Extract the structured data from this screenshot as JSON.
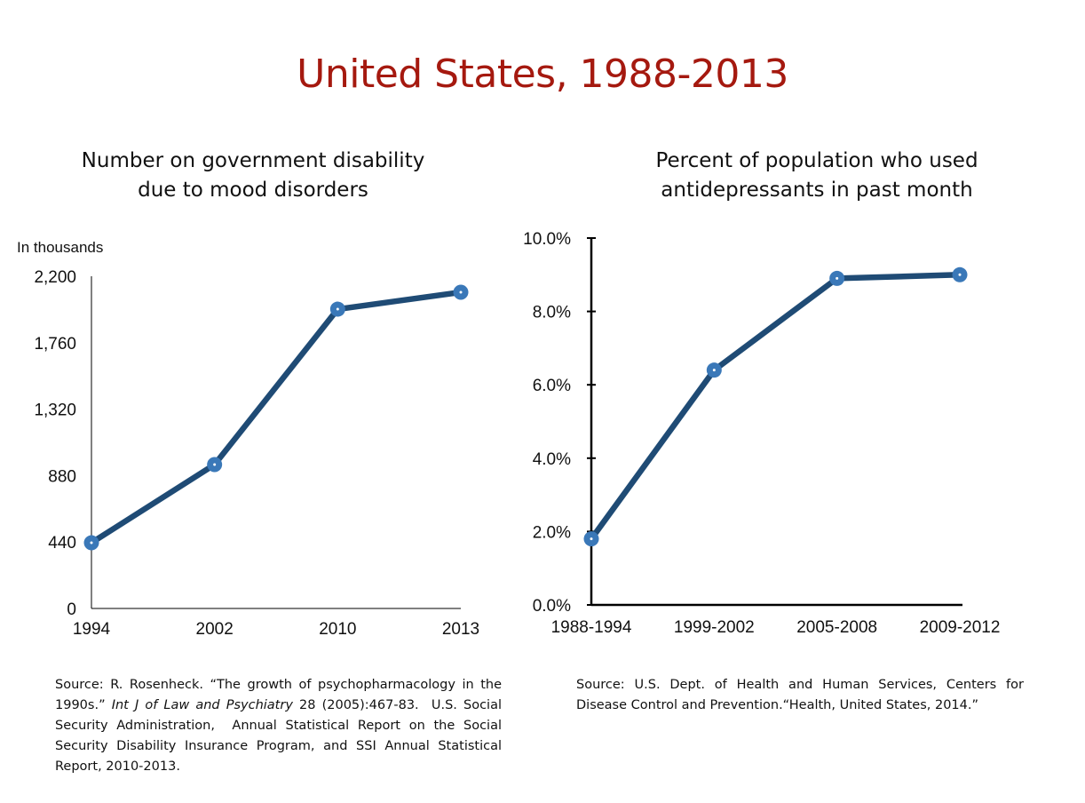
{
  "title": "United States, 1988-2013",
  "colors": {
    "title": "#a5190f",
    "line": "#1f4b75",
    "marker": "#3a78b8"
  },
  "chart_data": [
    {
      "type": "line",
      "title_lines": [
        "Number on government disability",
        "due to mood disorders"
      ],
      "unit_label": "In thousands",
      "xlabel": "",
      "ylabel": "In thousands",
      "categories": [
        "1994",
        "2002",
        "2010",
        "2013"
      ],
      "series": [
        {
          "name": "Disability due to mood disorders",
          "values": [
            435,
            953,
            1982,
            2094
          ]
        }
      ],
      "ylim": [
        0,
        2200
      ],
      "yticks": [
        0,
        440,
        880,
        1320,
        1760,
        2200
      ],
      "ytick_labels": [
        "0",
        "440",
        "880",
        "1,320",
        "1,760",
        "2,200"
      ],
      "grid": false,
      "source": "Source: R. Rosenheck. “The growth of psychopharmacology in the 1990s.” Int J of Law and Psychiatry 28 (2005):467-83.  U.S. Social Security Administration,  Annual Statistical Report on the Social Security Disability Insurance Program, and SSI Annual Statistical Report, 2010-2013."
    },
    {
      "type": "line",
      "title_lines": [
        "Percent of population who used",
        "antidepressants in past month"
      ],
      "xlabel": "",
      "ylabel": "",
      "categories": [
        "1988-1994",
        "1999-2002",
        "2005-2008",
        "2009-2012"
      ],
      "series": [
        {
          "name": "Antidepressant use",
          "values": [
            1.8,
            6.4,
            8.9,
            9.0
          ]
        }
      ],
      "ylim": [
        0,
        10
      ],
      "yticks": [
        0,
        2,
        4,
        6,
        8,
        10
      ],
      "ytick_labels": [
        "0.0%",
        "2.0%",
        "4.0%",
        "6.0%",
        "8.0%",
        "10.0%"
      ],
      "grid": false,
      "source": "Source: U.S. Dept. of Health and Human Services, Centers for Disease Control and Prevention.“Health, United States, 2014.”"
    }
  ]
}
